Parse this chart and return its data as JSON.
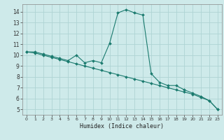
{
  "title": "",
  "xlabel": "Humidex (Indice chaleur)",
  "bg_color": "#ceeaea",
  "grid_color": "#aed4d4",
  "line_color": "#1a7a6e",
  "xlim": [
    -0.5,
    23.5
  ],
  "ylim": [
    4.5,
    14.7
  ],
  "xticks": [
    0,
    1,
    2,
    3,
    4,
    5,
    6,
    7,
    8,
    9,
    10,
    11,
    12,
    13,
    14,
    15,
    16,
    17,
    18,
    19,
    20,
    21,
    22,
    23
  ],
  "yticks": [
    5,
    6,
    7,
    8,
    9,
    10,
    11,
    12,
    13,
    14
  ],
  "series1_x": [
    0,
    1,
    2,
    3,
    4,
    5,
    6,
    7,
    8,
    9,
    10,
    11,
    12,
    13,
    14,
    15,
    16,
    17,
    18,
    19,
    20,
    21,
    22,
    23
  ],
  "series1_y": [
    10.3,
    10.3,
    10.1,
    9.9,
    9.7,
    9.5,
    10.0,
    9.3,
    9.5,
    9.3,
    11.1,
    13.9,
    14.2,
    13.9,
    13.7,
    8.3,
    7.5,
    7.2,
    7.2,
    6.8,
    6.5,
    6.2,
    5.8,
    5.0
  ],
  "series2_x": [
    0,
    1,
    2,
    3,
    4,
    5,
    6,
    7,
    8,
    9,
    10,
    11,
    12,
    13,
    14,
    15,
    16,
    17,
    18,
    19,
    20,
    21,
    22,
    23
  ],
  "series2_y": [
    10.3,
    10.2,
    10.0,
    9.8,
    9.6,
    9.4,
    9.2,
    9.0,
    8.8,
    8.6,
    8.4,
    8.2,
    8.0,
    7.8,
    7.6,
    7.4,
    7.2,
    7.0,
    6.8,
    6.6,
    6.4,
    6.1,
    5.8,
    5.0
  ]
}
